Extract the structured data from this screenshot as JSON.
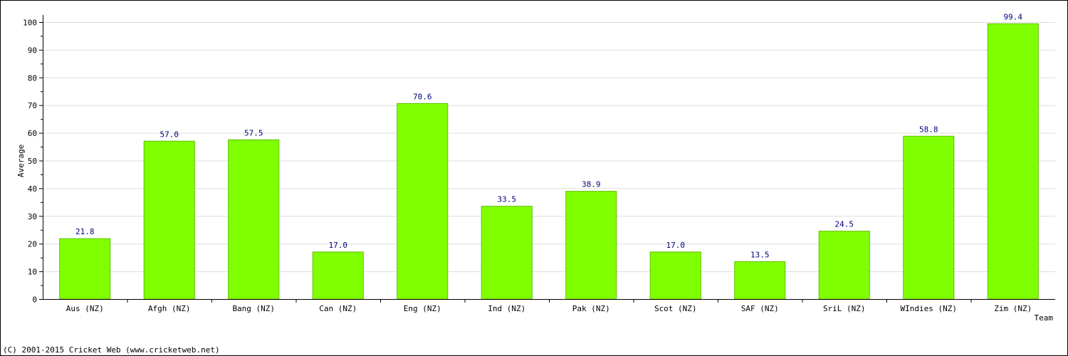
{
  "chart_data": {
    "type": "bar",
    "ylabel": "Average",
    "xlabel": "Team",
    "ylim": [
      0,
      100
    ],
    "yticks": [
      0,
      10,
      20,
      30,
      40,
      50,
      60,
      70,
      80,
      90,
      100
    ],
    "grid": true,
    "categories": [
      "Aus (NZ)",
      "Afgh (NZ)",
      "Bang (NZ)",
      "Can (NZ)",
      "Eng (NZ)",
      "Ind (NZ)",
      "Pak (NZ)",
      "Scot (NZ)",
      "SAF (NZ)",
      "SriL (NZ)",
      "WIndies (NZ)",
      "Zim (NZ)"
    ],
    "values": [
      21.8,
      57.0,
      57.5,
      17.0,
      70.6,
      33.5,
      38.9,
      17.0,
      13.5,
      24.5,
      58.8,
      99.4
    ],
    "value_labels": [
      "21.8",
      "57.0",
      "57.5",
      "17.0",
      "70.6",
      "33.5",
      "38.9",
      "17.0",
      "13.5",
      "24.5",
      "58.8",
      "99.4"
    ],
    "bar_color": "#80ff00",
    "value_label_color": "#000080"
  },
  "footer": {
    "copyright": "(C) 2001-2015 Cricket Web (www.cricketweb.net)"
  }
}
